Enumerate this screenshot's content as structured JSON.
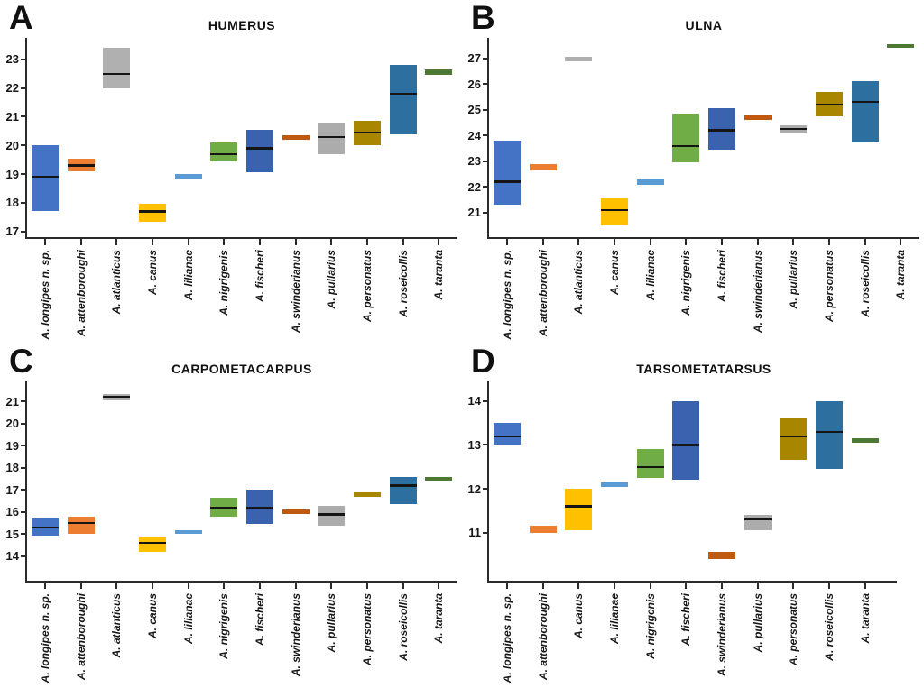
{
  "species_colors": {
    "A. longipes n. sp.": "#4472C4",
    "A. attenboroughi": "#ED7D31",
    "A. atlanticus": "#B0B0B0",
    "A. canus": "#FFC000",
    "A. lilianae": "#5B9BD5",
    "A. nigrigenis": "#70AD47",
    "A. fischeri": "#3A62AE",
    "A. swinderianus": "#C05A11",
    "A. pullarius": "#ACACAC",
    "A. personatus": "#A98600",
    "A. roseicollis": "#2D6F9F",
    "A. taranta": "#4E7935"
  },
  "chart_data": [
    {
      "type": "bar",
      "subtype": "floating-range-bar-with-median",
      "panel_label": "A",
      "title": "HUMERUS",
      "xlabel": "",
      "ylabel": "",
      "grid": false,
      "legend": false,
      "ylim": [
        16.8,
        23.75
      ],
      "yticks": [
        17,
        18,
        19,
        20,
        21,
        22,
        23
      ],
      "x_slots": 12,
      "axis_slots": 12,
      "bars": [
        {
          "species": "A. longipes n. sp.",
          "low": 17.7,
          "median": 18.9,
          "high": 20.0
        },
        {
          "species": "A. attenboroughi",
          "low": 19.1,
          "median": 19.3,
          "high": 19.55
        },
        {
          "species": "A. atlanticus",
          "low": 22.0,
          "median": 22.5,
          "high": 23.4
        },
        {
          "species": "A. canus",
          "low": 17.35,
          "median": 17.7,
          "high": 17.95
        },
        {
          "species": "A. lilianae",
          "low": 18.8,
          "median": null,
          "high": 19.0
        },
        {
          "species": "A. nigrigenis",
          "low": 19.45,
          "median": 19.7,
          "high": 20.1
        },
        {
          "species": "A. fischeri",
          "low": 19.05,
          "median": 19.9,
          "high": 20.55
        },
        {
          "species": "A. swinderianus",
          "low": 20.2,
          "median": null,
          "high": 20.35
        },
        {
          "species": "A. pullarius",
          "low": 19.7,
          "median": 20.3,
          "high": 20.8
        },
        {
          "species": "A. personatus",
          "low": 20.0,
          "median": 20.45,
          "high": 20.85
        },
        {
          "species": "A. roseicollis",
          "low": 20.4,
          "median": 21.8,
          "high": 22.8
        },
        {
          "species": "A. taranta",
          "low": 22.45,
          "median": null,
          "high": 22.65
        }
      ]
    },
    {
      "type": "bar",
      "subtype": "floating-range-bar-with-median",
      "panel_label": "B",
      "title": "ULNA",
      "xlabel": "",
      "ylabel": "",
      "grid": false,
      "legend": false,
      "ylim": [
        20.05,
        27.8
      ],
      "yticks": [
        21,
        22,
        23,
        24,
        25,
        26,
        27
      ],
      "x_slots": 12,
      "axis_slots": 12,
      "bars": [
        {
          "species": "A. longipes n. sp.",
          "low": 21.3,
          "median": 22.2,
          "high": 23.8
        },
        {
          "species": "A. attenboroughi",
          "low": 22.65,
          "median": null,
          "high": 22.9
        },
        {
          "species": "A. atlanticus",
          "low": 26.9,
          "median": null,
          "high": 27.05
        },
        {
          "species": "A. canus",
          "low": 20.5,
          "median": 21.1,
          "high": 21.55
        },
        {
          "species": "A. lilianae",
          "low": 22.1,
          "median": null,
          "high": 22.3
        },
        {
          "species": "A. nigrigenis",
          "low": 22.95,
          "median": 23.6,
          "high": 24.85
        },
        {
          "species": "A. fischeri",
          "low": 23.45,
          "median": 24.2,
          "high": 25.05
        },
        {
          "species": "A. swinderianus",
          "low": 24.6,
          "median": null,
          "high": 24.8
        },
        {
          "species": "A. pullarius",
          "low": 24.1,
          "median": 24.25,
          "high": 24.4
        },
        {
          "species": "A. personatus",
          "low": 24.75,
          "median": 25.2,
          "high": 25.7
        },
        {
          "species": "A. roseicollis",
          "low": 23.75,
          "median": 25.3,
          "high": 26.1
        },
        {
          "species": "A. taranta",
          "low": 27.4,
          "median": null,
          "high": 27.55
        }
      ]
    },
    {
      "type": "bar",
      "subtype": "floating-range-bar-with-median",
      "panel_label": "C",
      "title": "CARPOMETACARPUS",
      "xlabel": "",
      "ylabel": "",
      "grid": false,
      "legend": false,
      "ylim": [
        12.9,
        21.9
      ],
      "yticks": [
        14,
        15,
        16,
        17,
        18,
        19,
        20,
        21
      ],
      "x_slots": 12,
      "axis_slots": 12,
      "bars": [
        {
          "species": "A. longipes n. sp.",
          "low": 14.95,
          "median": 15.3,
          "high": 15.7
        },
        {
          "species": "A. attenboroughi",
          "low": 15.0,
          "median": 15.5,
          "high": 15.8
        },
        {
          "species": "A. atlanticus",
          "low": 21.05,
          "median": 21.2,
          "high": 21.35
        },
        {
          "species": "A. canus",
          "low": 14.2,
          "median": 14.6,
          "high": 14.9
        },
        {
          "species": "A. lilianae",
          "low": 15.05,
          "median": null,
          "high": 15.2
        },
        {
          "species": "A. nigrigenis",
          "low": 15.8,
          "median": 16.2,
          "high": 16.65
        },
        {
          "species": "A. fischeri",
          "low": 15.45,
          "median": 16.2,
          "high": 17.0
        },
        {
          "species": "A. swinderianus",
          "low": 15.9,
          "median": null,
          "high": 16.1
        },
        {
          "species": "A. pullarius",
          "low": 15.4,
          "median": 15.9,
          "high": 16.3
        },
        {
          "species": "A. personatus",
          "low": 16.7,
          "median": null,
          "high": 16.9
        },
        {
          "species": "A. roseicollis",
          "low": 16.35,
          "median": 17.2,
          "high": 17.6
        },
        {
          "species": "A. taranta",
          "low": 17.45,
          "median": null,
          "high": 17.6
        }
      ]
    },
    {
      "type": "bar",
      "subtype": "floating-range-bar-with-median",
      "panel_label": "D",
      "title": "TARSOMETATARSUS",
      "xlabel": "",
      "ylabel": "",
      "grid": false,
      "legend": false,
      "ylim": [
        9.9,
        14.45
      ],
      "yticks": [
        11,
        12,
        13,
        14
      ],
      "x_slots": 12,
      "axis_slots": 11.4,
      "bars": [
        {
          "species": "A. longipes n. sp.",
          "low": 13.0,
          "median": 13.2,
          "high": 13.5
        },
        {
          "species": "A. attenboroughi",
          "low": 11.0,
          "median": null,
          "high": 11.15
        },
        {
          "species": "A. canus",
          "low": 11.05,
          "median": 11.6,
          "high": 12.0
        },
        {
          "species": "A. lilianae",
          "low": 12.05,
          "median": null,
          "high": 12.15
        },
        {
          "species": "A. nigrigenis",
          "low": 12.25,
          "median": 12.5,
          "high": 12.9
        },
        {
          "species": "A. fischeri",
          "low": 12.2,
          "median": 13.0,
          "high": 14.0
        },
        {
          "species": "A. swinderianus",
          "low": 10.4,
          "median": null,
          "high": 10.55
        },
        {
          "species": "A. pullarius",
          "low": 11.05,
          "median": 11.3,
          "high": 11.4
        },
        {
          "species": "A. personatus",
          "low": 12.65,
          "median": 13.2,
          "high": 13.6
        },
        {
          "species": "A. roseicollis",
          "low": 12.45,
          "median": 13.3,
          "high": 14.0
        },
        {
          "species": "A. taranta",
          "low": 13.05,
          "median": null,
          "high": 13.15
        }
      ]
    }
  ]
}
